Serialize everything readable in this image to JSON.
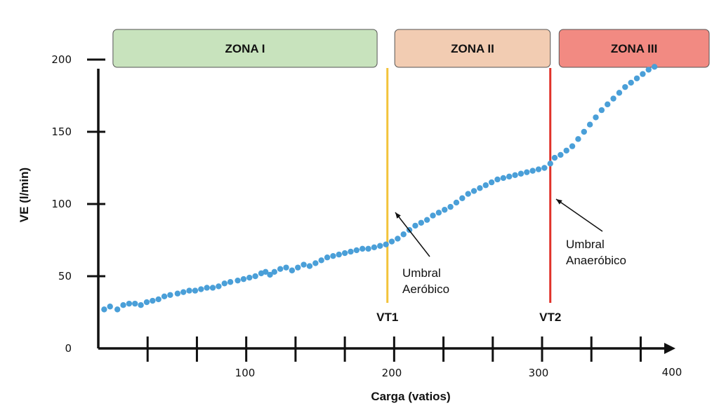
{
  "chart_data": {
    "type": "scatter",
    "xlabel": "Carga (vatios)",
    "ylabel": "VE (l/min)",
    "xlim": [
      0,
      400
    ],
    "ylim": [
      0,
      200
    ],
    "x_tick_labels": [
      "100",
      "200",
      "300",
      "400"
    ],
    "y_tick_labels": [
      "0",
      "50",
      "100",
      "150",
      "200"
    ],
    "grid": false,
    "point_color": "#4a9fd8",
    "zones": [
      {
        "label": "ZONA I",
        "x_start": 10,
        "x_end": 190,
        "color": "#c8e3bd"
      },
      {
        "label": "ZONA II",
        "x_start": 202,
        "x_end": 308,
        "color": "#f2ccb2"
      },
      {
        "label": "ZONA III",
        "x_start": 314,
        "x_end": 420,
        "color": "#f28a82"
      }
    ],
    "thresholds": [
      {
        "label": "VT1",
        "x": 197,
        "color": "#f3c33a",
        "annotation": [
          "Umbral",
          "Aeróbico"
        ]
      },
      {
        "label": "VT2",
        "x": 308,
        "color": "#e0312a",
        "annotation": [
          "Umbral",
          "Anaeróbico"
        ]
      }
    ],
    "points": [
      [
        4,
        27
      ],
      [
        8,
        29
      ],
      [
        13,
        27
      ],
      [
        17,
        30
      ],
      [
        21,
        31
      ],
      [
        25,
        31
      ],
      [
        29,
        30
      ],
      [
        33,
        32
      ],
      [
        37,
        33
      ],
      [
        41,
        34
      ],
      [
        45,
        36
      ],
      [
        49,
        37
      ],
      [
        54,
        38
      ],
      [
        58,
        39
      ],
      [
        62,
        40
      ],
      [
        66,
        40
      ],
      [
        70,
        41
      ],
      [
        74,
        42
      ],
      [
        78,
        42
      ],
      [
        82,
        43
      ],
      [
        86,
        45
      ],
      [
        90,
        46
      ],
      [
        95,
        47
      ],
      [
        99,
        48
      ],
      [
        103,
        49
      ],
      [
        107,
        50
      ],
      [
        111,
        52
      ],
      [
        114,
        53
      ],
      [
        117,
        51
      ],
      [
        120,
        53
      ],
      [
        124,
        55
      ],
      [
        128,
        56
      ],
      [
        132,
        54
      ],
      [
        136,
        56
      ],
      [
        140,
        58
      ],
      [
        144,
        57
      ],
      [
        148,
        59
      ],
      [
        152,
        61
      ],
      [
        156,
        63
      ],
      [
        160,
        64
      ],
      [
        164,
        65
      ],
      [
        168,
        66
      ],
      [
        172,
        67
      ],
      [
        176,
        68
      ],
      [
        180,
        69
      ],
      [
        184,
        69
      ],
      [
        188,
        70
      ],
      [
        192,
        71
      ],
      [
        196,
        72
      ],
      [
        200,
        74
      ],
      [
        204,
        76
      ],
      [
        208,
        79
      ],
      [
        212,
        82
      ],
      [
        216,
        85
      ],
      [
        220,
        87
      ],
      [
        224,
        89
      ],
      [
        228,
        92
      ],
      [
        232,
        94
      ],
      [
        236,
        96
      ],
      [
        240,
        98
      ],
      [
        244,
        101
      ],
      [
        248,
        104
      ],
      [
        252,
        107
      ],
      [
        256,
        109
      ],
      [
        260,
        111
      ],
      [
        264,
        113
      ],
      [
        268,
        115
      ],
      [
        272,
        117
      ],
      [
        276,
        118
      ],
      [
        280,
        119
      ],
      [
        284,
        120
      ],
      [
        288,
        121
      ],
      [
        292,
        122
      ],
      [
        296,
        123
      ],
      [
        300,
        124
      ],
      [
        304,
        125
      ],
      [
        308,
        128
      ],
      [
        311,
        132
      ],
      [
        315,
        134
      ],
      [
        319,
        137
      ],
      [
        323,
        140
      ],
      [
        327,
        145
      ],
      [
        331,
        150
      ],
      [
        335,
        155
      ],
      [
        339,
        160
      ],
      [
        343,
        165
      ],
      [
        347,
        169
      ],
      [
        351,
        173
      ],
      [
        355,
        177
      ],
      [
        359,
        181
      ],
      [
        363,
        184
      ],
      [
        367,
        187
      ],
      [
        371,
        190
      ],
      [
        375,
        193
      ],
      [
        379,
        195
      ]
    ]
  }
}
